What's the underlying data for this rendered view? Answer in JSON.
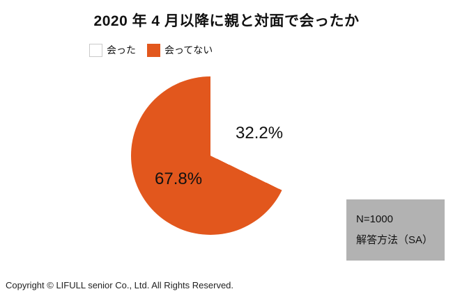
{
  "title": "2020 年 4 月以降に親と対面で会ったか",
  "legend": [
    {
      "label": "会った",
      "color": "#ffffff"
    },
    {
      "label": "会ってない",
      "color": "#e2571d"
    }
  ],
  "chart_data": {
    "type": "pie",
    "title": "2020 年 4 月以降に親と対面で会ったか",
    "labels": [
      "会った",
      "会ってない"
    ],
    "values": [
      32.2,
      67.8
    ],
    "colors": [
      "#ffffff",
      "#e2571d"
    ],
    "data_labels": [
      "32.2%",
      "67.8%"
    ],
    "start_angle_deg": 0,
    "direction": "clockwise",
    "legend_position": "top-left"
  },
  "note_box": {
    "line1": "N=1000",
    "line2": "解答方法（SA）"
  },
  "footer": "Copyright © LIFULL senior Co., Ltd. All Rights Reserved."
}
